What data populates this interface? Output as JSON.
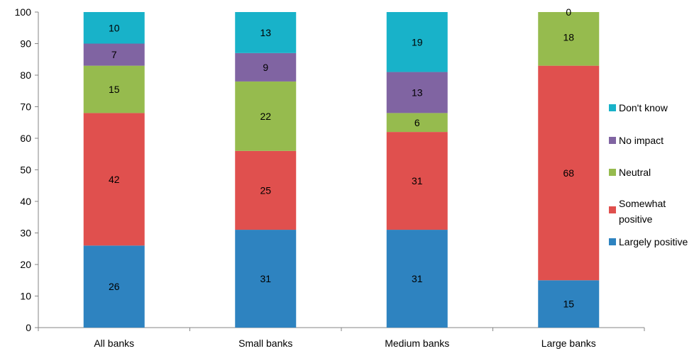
{
  "chart_data": {
    "type": "bar",
    "stacked": true,
    "categories": [
      "All banks",
      "Small banks",
      "Medium banks",
      "Large banks"
    ],
    "series": [
      {
        "name": "Largely positive",
        "color": "#2e83c0",
        "values": [
          26,
          31,
          31,
          15
        ]
      },
      {
        "name": "Somewhat positive",
        "color": "#e0504e",
        "values": [
          42,
          25,
          31,
          68
        ]
      },
      {
        "name": "Neutral",
        "color": "#96bb4e",
        "values": [
          15,
          22,
          6,
          18
        ]
      },
      {
        "name": "No impact",
        "color": "#8064a2",
        "values": [
          7,
          9,
          13,
          0
        ]
      },
      {
        "name": "Don't know",
        "color": "#18b2c9",
        "values": [
          10,
          13,
          19,
          0
        ]
      }
    ],
    "legend_order": [
      "Don't know",
      "No impact",
      "Neutral",
      "Somewhat positive",
      "Largely positive"
    ],
    "ylim": [
      0,
      100
    ],
    "yticks": [
      0,
      10,
      20,
      30,
      40,
      50,
      60,
      70,
      80,
      90,
      100
    ],
    "legend_position": "right",
    "grid": false
  }
}
